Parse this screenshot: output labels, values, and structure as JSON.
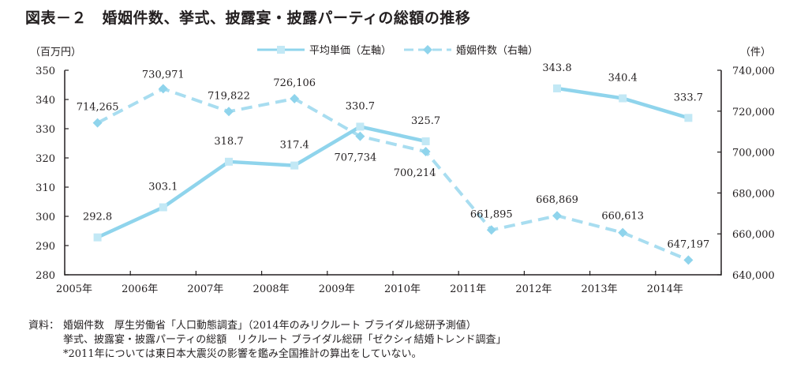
{
  "title": "図表－２　婚姻件数、挙式、披露宴・披露パーティの総額の推移",
  "left_unit": "（百万円）",
  "right_unit": "（件）",
  "notes": {
    "label": "資料：",
    "line1": "婚姻件数　厚生労働省「人口動態調査」（2014年のみリクルート ブライダル総研予測値）",
    "line2": "挙式、披露宴・披露パーティの総額　リクルート ブライダル総研「ゼクシィ結婚トレンド調査」",
    "line3": "*2011年については東日本大震災の影響を鑑み全国推計の算出をしていない。"
  },
  "colors": {
    "price_line": "#8fd4ec",
    "count_line": "#a8ddf0",
    "marker": "#c2e8f5",
    "axis": "#231f20"
  },
  "chart_data": {
    "type": "line",
    "title": "図表－２　婚姻件数、挙式、披露宴・披露パーティの総額の推移",
    "categories": [
      "2005年",
      "2006年",
      "2007年",
      "2008年",
      "2009年",
      "2010年",
      "2011年",
      "2012年",
      "2013年",
      "2014年"
    ],
    "series": [
      {
        "name": "平均単価（左軸）",
        "axis": "left",
        "style": "solid",
        "marker": "square",
        "values": [
          292.8,
          303.1,
          318.7,
          317.4,
          330.7,
          325.7,
          null,
          343.8,
          340.4,
          333.7
        ],
        "labels": [
          "292.8",
          "303.1",
          "318.7",
          "317.4",
          "330.7",
          "325.7",
          null,
          "343.8",
          "340.4",
          "333.7"
        ]
      },
      {
        "name": "婚姻件数（右軸）",
        "axis": "right",
        "style": "dashed",
        "marker": "diamond",
        "values": [
          714265,
          730971,
          719822,
          726106,
          707734,
          700214,
          661895,
          668869,
          660613,
          647197
        ],
        "labels": [
          "714,265",
          "730,971",
          "719,822",
          "726,106",
          "707,734",
          "700,214",
          "661,895",
          "668,869",
          "660,613",
          "647,197"
        ]
      }
    ],
    "left_axis": {
      "label": "（百万円）",
      "range": [
        280,
        350
      ],
      "ticks": [
        280,
        290,
        300,
        310,
        320,
        330,
        340,
        350
      ]
    },
    "right_axis": {
      "label": "（件）",
      "range": [
        640000,
        740000
      ],
      "ticks": [
        "640,000",
        "660,000",
        "680,000",
        "700,000",
        "720,000",
        "740,000"
      ],
      "tick_values": [
        640000,
        660000,
        680000,
        700000,
        720000,
        740000
      ]
    },
    "legend": {
      "position": "top-center",
      "entries": [
        "平均単価（左軸）",
        "婚姻件数（右軸）"
      ]
    },
    "grid": false
  }
}
